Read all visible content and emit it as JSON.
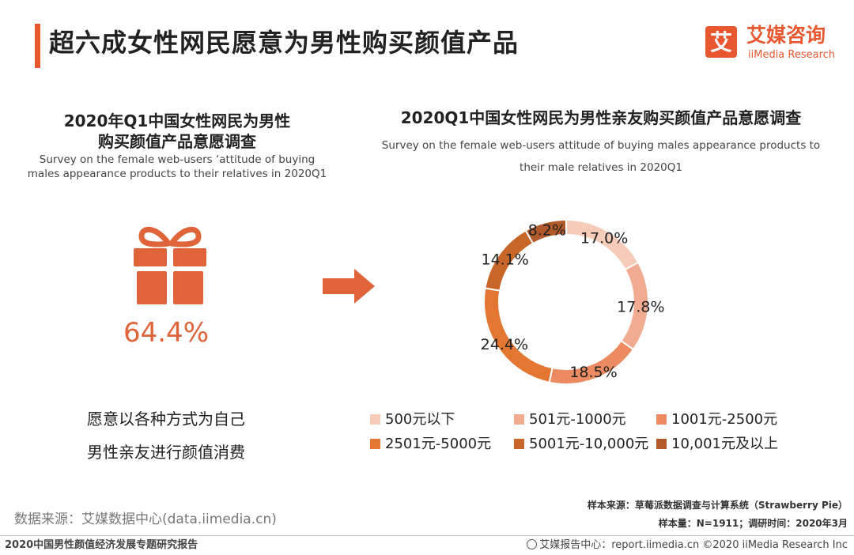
{
  "header": {
    "title": "超六成女性网民愿意为男性购买颜值产品",
    "logo_cn": "艾媒咨询",
    "logo_en": "iiMedia Research",
    "logo_mark": "艾"
  },
  "left_panel": {
    "title_line1": "2020年Q1中国女性网民为男性",
    "title_line2": "购买颜值产品意愿调查",
    "subtitle_line1": "Survey on the female web-users ‘attitude of buying",
    "subtitle_line2": "males appearance products to their relatives in 2020Q1",
    "icon": "gift-icon",
    "percent": "64.4%",
    "desc_line1": "愿意以各种方式为自己",
    "desc_line2": "男性亲友进行颜值消费"
  },
  "arrow_icon": "right-arrow-icon",
  "chart_data": {
    "type": "pie",
    "donut": true,
    "title": "2020Q1中国女性网民为男性亲友购买颜值产品意愿调查",
    "subtitle_line1": "Survey on the female web-users attitude of buying males appearance products to",
    "subtitle_line2": "their male relatives in 2020Q1",
    "categories": [
      "500元以下",
      "501元-1000元",
      "1001元-2500元",
      "2501元-5000元",
      "5001元-10,000元",
      "10,001元及以上"
    ],
    "values": [
      17.0,
      17.8,
      18.5,
      24.4,
      14.1,
      8.2
    ],
    "labels": [
      "17.0%",
      "17.8%",
      "18.5%",
      "24.4%",
      "14.1%",
      "8.2%"
    ],
    "colors": [
      "#f6cbb8",
      "#f0ab90",
      "#ec8b62",
      "#e37731",
      "#c8662a",
      "#b1592a"
    ],
    "legend_position": "bottom"
  },
  "footer": {
    "source": "数据来源：艾媒数据中心(data.iimedia.cn)",
    "sample_source": "样本来源：草莓派数据调查与计算系统（Strawberry  Pie）",
    "sample_size": "样本量：N=1911；调研时间：2020年3月",
    "report_name": "2020中国男性颜值经济发展专题研究报告",
    "copyright": "艾媒报告中心：report.iimedia.cn  ©2020  iiMedia Research  Inc"
  }
}
